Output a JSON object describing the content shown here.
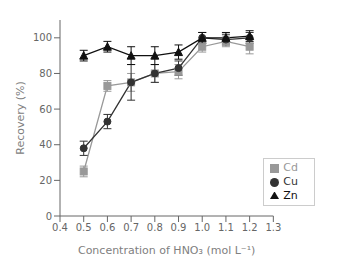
{
  "chart_data": {
    "type": "line",
    "x": [
      0.5,
      0.6,
      0.7,
      0.8,
      0.9,
      1.0,
      1.1,
      1.2
    ],
    "series": [
      {
        "name": "Cd",
        "color": "#999999",
        "marker": "square",
        "line_style": "solid",
        "values": [
          25,
          73,
          75,
          80,
          81,
          95,
          98,
          95
        ],
        "errors": [
          3,
          3,
          5,
          5,
          4,
          3,
          3,
          4
        ]
      },
      {
        "name": "Cu",
        "color": "#333333",
        "marker": "circle",
        "line_style": "solid",
        "values": [
          38,
          53,
          75,
          80,
          83,
          100,
          99,
          100
        ],
        "errors": [
          4,
          4,
          10,
          5,
          4,
          3,
          3,
          3
        ]
      },
      {
        "name": "Zn",
        "color": "#111111",
        "marker": "triangle",
        "line_style": "solid",
        "values": [
          90,
          95,
          90,
          90,
          92,
          100,
          100,
          101
        ],
        "errors": [
          3,
          3,
          5,
          5,
          4,
          3,
          3,
          3
        ]
      }
    ],
    "xlabel": "Concentration of HNO₃ (mol L⁻¹)",
    "ylabel": "Recovery (%)",
    "xlim": [
      0.4,
      1.3
    ],
    "ylim": [
      0,
      110
    ],
    "xticks": [
      0.4,
      0.5,
      0.6,
      0.7,
      0.8,
      0.9,
      {
        "value": 1.0,
        "label": "1.0"
      },
      1.1,
      1.2,
      1.3
    ],
    "yticks": [
      0,
      20,
      40,
      60,
      80,
      100
    ],
    "grid": false,
    "legend": "lower right"
  }
}
